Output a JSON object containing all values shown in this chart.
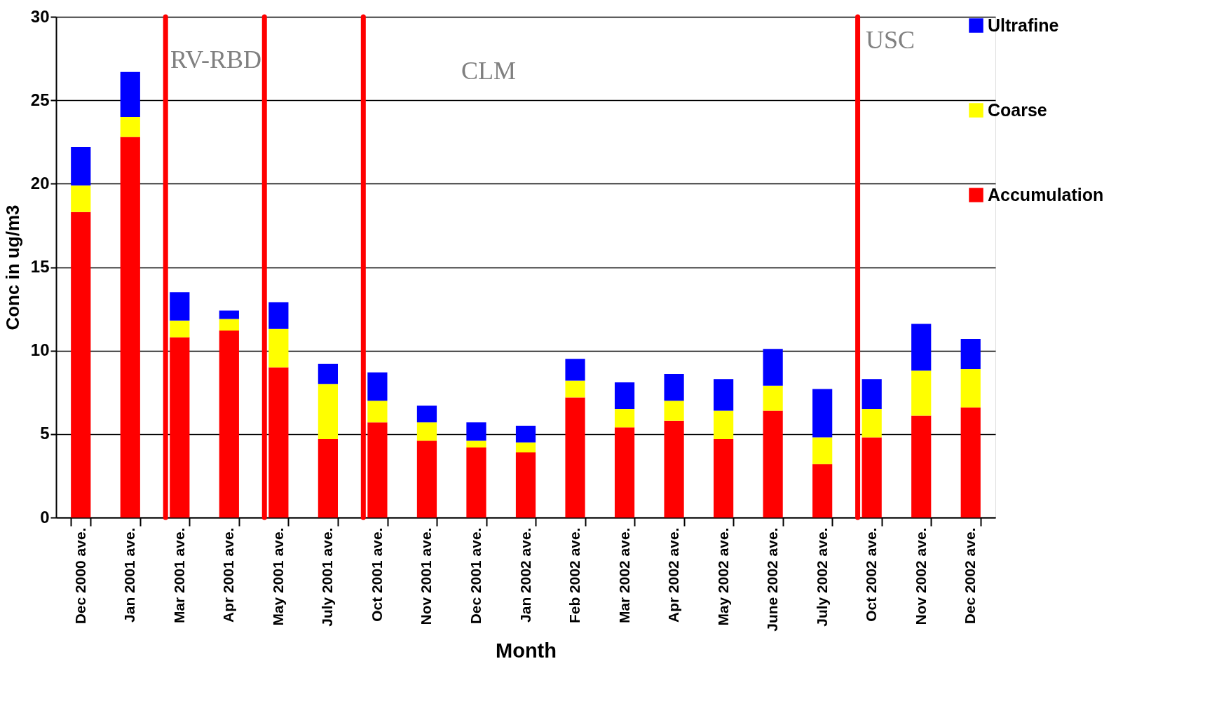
{
  "chart_data": {
    "type": "bar",
    "stacked": true,
    "xlabel": "Month",
    "ylabel": "Conc in ug/m3",
    "categories": [
      "Dec 2000 ave.",
      "Jan 2001 ave.",
      "Mar 2001 ave.",
      "Apr 2001 ave.",
      "May 2001 ave.",
      "July 2001 ave.",
      "Oct 2001 ave.",
      "Nov 2001 ave.",
      "Dec 2001 ave.",
      "Jan 2002 ave.",
      "Feb 2002 ave.",
      "Mar 2002 ave.",
      "Apr 2002 ave.",
      "May 2002 ave.",
      "June 2002 ave.",
      "July 2002 ave.",
      "Oct 2002 ave.",
      "Nov 2002 ave.",
      "Dec 2002 ave."
    ],
    "series": [
      {
        "name": "Accumulation",
        "color": "#ff0000",
        "values": [
          18.3,
          22.8,
          10.8,
          11.2,
          9.0,
          4.7,
          5.7,
          4.6,
          4.2,
          3.9,
          7.2,
          5.4,
          5.8,
          4.7,
          6.4,
          3.2,
          4.8,
          6.1,
          6.6
        ]
      },
      {
        "name": "Coarse",
        "color": "#ffff00",
        "values": [
          1.6,
          1.2,
          1.0,
          0.7,
          2.3,
          3.3,
          1.3,
          1.1,
          0.4,
          0.6,
          1.0,
          1.1,
          1.2,
          1.7,
          1.5,
          1.6,
          1.7,
          2.7,
          2.3
        ]
      },
      {
        "name": "Ultrafine",
        "color": "#0000ff",
        "values": [
          2.3,
          2.7,
          1.7,
          0.5,
          1.6,
          1.2,
          1.7,
          1.0,
          1.1,
          1.0,
          1.3,
          1.6,
          1.6,
          1.9,
          2.2,
          2.9,
          1.8,
          2.8,
          1.8
        ]
      }
    ],
    "ylim": [
      0,
      30
    ],
    "yticks": [
      0,
      5,
      10,
      15,
      20,
      25,
      30
    ],
    "grid": "y",
    "legend": "right",
    "ref_lines": [
      {
        "axis": "x",
        "value": "Mar 2001 ave.",
        "color": "#ff0000"
      },
      {
        "axis": "x",
        "value": "May 2001 ave.",
        "color": "#ff0000"
      },
      {
        "axis": "x",
        "value": "Oct 2001 ave.",
        "color": "#ff0000"
      },
      {
        "axis": "x",
        "value": "Oct 2002 ave.",
        "color": "#ff0000"
      }
    ],
    "annotations": [
      "RV-RBD",
      "CLM",
      "USC"
    ]
  }
}
